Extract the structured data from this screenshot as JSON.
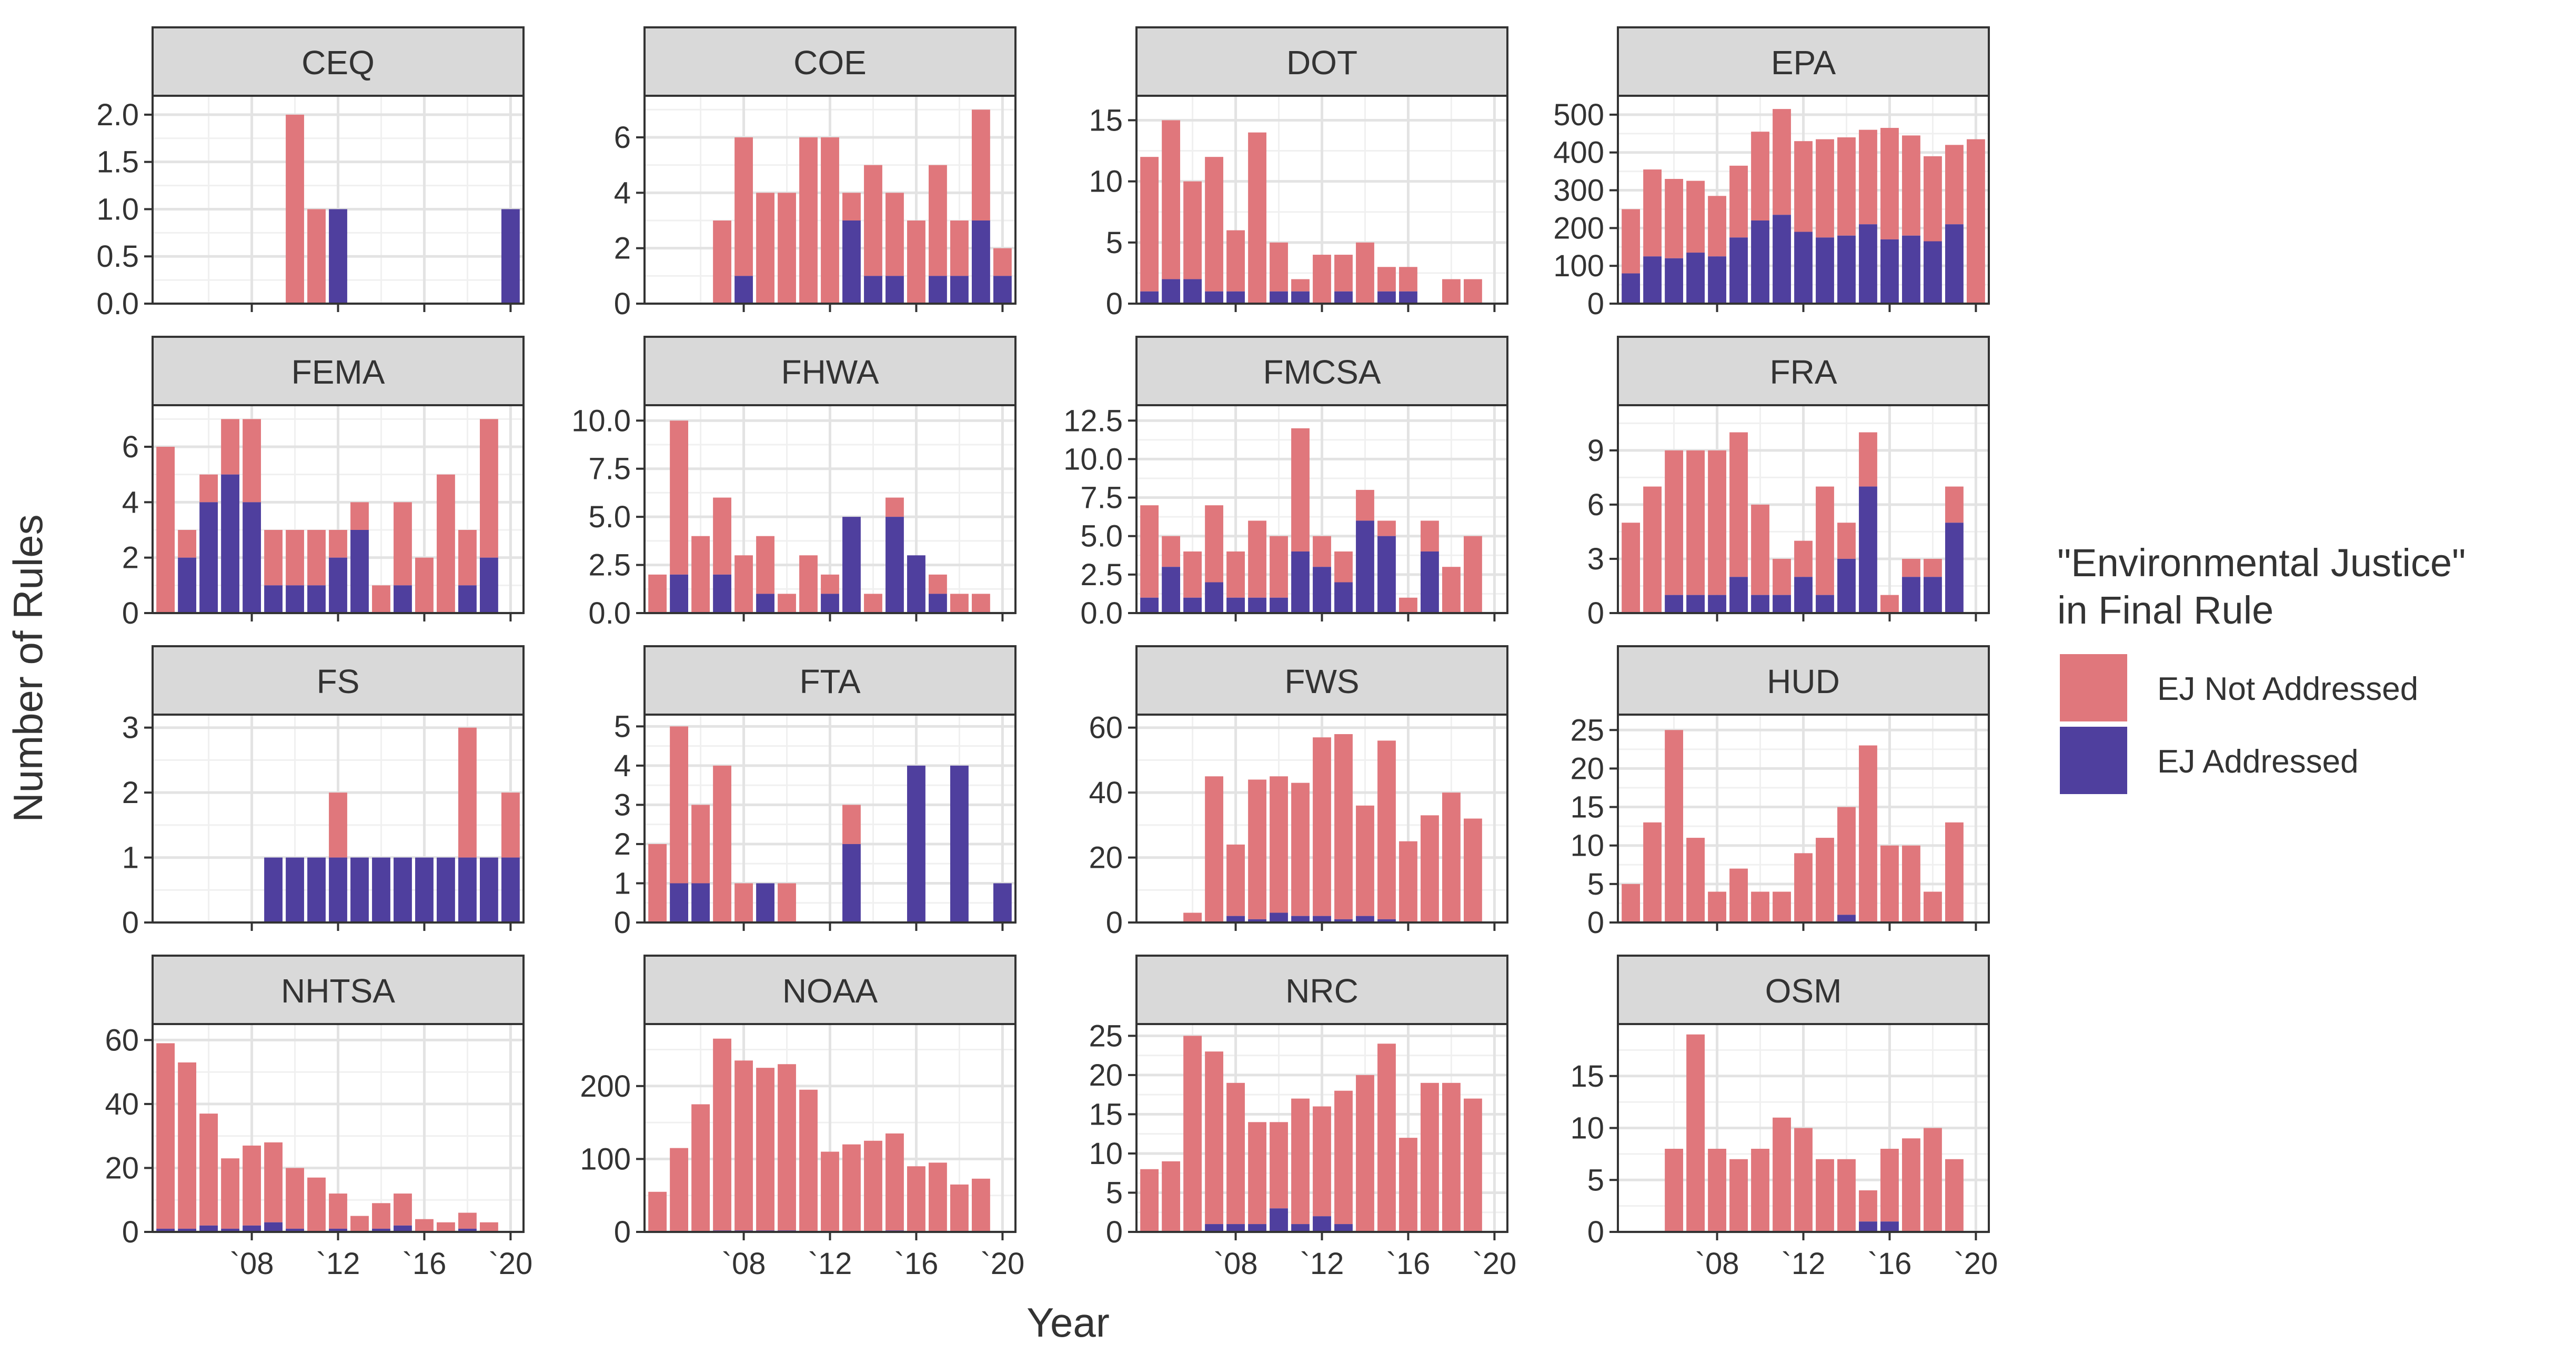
{
  "chart_data": {
    "type": "bar",
    "stacked": true,
    "facet": "panel",
    "xlabel": "Year",
    "ylabel": "Number of Rules",
    "x": [
      2004,
      2005,
      2006,
      2007,
      2008,
      2009,
      2010,
      2011,
      2012,
      2013,
      2014,
      2015,
      2016,
      2017,
      2018,
      2019,
      2020
    ],
    "x_ticks": [
      2008,
      2012,
      2016,
      2020
    ],
    "x_tick_labels": [
      "`08",
      "`12",
      "`16",
      "`20"
    ],
    "legend": {
      "title": "\"Environmental Justice\" in Final Rule",
      "title_lines": [
        "\"Environmental Justice\"",
        "in Final Rule"
      ],
      "position": "right",
      "series": [
        {
          "key": "not_addressed",
          "name": "EJ Not Addressed",
          "color": "#E0777C"
        },
        {
          "key": "addressed",
          "name": "EJ Addressed",
          "color": "#4F3F9E"
        }
      ]
    },
    "grid": true,
    "panels": [
      {
        "title": "CEQ",
        "ylim": [
          0,
          2.2
        ],
        "y_ticks": [
          0,
          0.5,
          1,
          1.5,
          2
        ],
        "y_tick_labels": [
          "0.0",
          "0.5",
          "1.0",
          "1.5",
          "2.0"
        ],
        "totals": [
          0,
          0,
          0,
          0,
          0,
          0,
          2,
          1,
          1,
          0,
          0,
          0,
          0,
          0,
          0,
          0,
          1
        ],
        "addressed": [
          0,
          0,
          0,
          0,
          0,
          0,
          0,
          0,
          1,
          0,
          0,
          0,
          0,
          0,
          0,
          0,
          1
        ]
      },
      {
        "title": "COE",
        "ylim": [
          0,
          7.5
        ],
        "y_ticks": [
          0,
          2,
          4,
          6
        ],
        "y_tick_labels": [
          "0",
          "2",
          "4",
          "6"
        ],
        "totals": [
          0,
          0,
          0,
          3,
          6,
          4,
          4,
          6,
          6,
          4,
          5,
          4,
          3,
          5,
          3,
          7,
          2
        ],
        "addressed": [
          0,
          0,
          0,
          0,
          1,
          0,
          0,
          0,
          0,
          3,
          1,
          1,
          0,
          1,
          1,
          3,
          1
        ]
      },
      {
        "title": "DOT",
        "ylim": [
          0,
          17
        ],
        "y_ticks": [
          0,
          5,
          10,
          15
        ],
        "y_tick_labels": [
          "0",
          "5",
          "10",
          "15"
        ],
        "totals": [
          12,
          15,
          10,
          12,
          6,
          14,
          5,
          2,
          4,
          4,
          5,
          3,
          3,
          0,
          2,
          2,
          0
        ],
        "addressed": [
          1,
          2,
          2,
          1,
          1,
          0,
          1,
          1,
          0,
          1,
          0,
          1,
          1,
          0,
          0,
          0,
          0
        ]
      },
      {
        "title": "EPA",
        "ylim": [
          0,
          550
        ],
        "y_ticks": [
          0,
          100,
          200,
          300,
          400,
          500
        ],
        "y_tick_labels": [
          "0",
          "100",
          "200",
          "300",
          "400",
          "500"
        ],
        "totals": [
          250,
          355,
          330,
          325,
          285,
          365,
          455,
          515,
          430,
          435,
          440,
          460,
          465,
          445,
          390,
          420,
          435
        ],
        "addressed": [
          80,
          125,
          120,
          135,
          125,
          175,
          220,
          235,
          190,
          175,
          180,
          210,
          170,
          180,
          165,
          210,
          0
        ]
      },
      {
        "title": "FEMA",
        "ylim": [
          0,
          7.5
        ],
        "y_ticks": [
          0,
          2,
          4,
          6
        ],
        "y_tick_labels": [
          "0",
          "2",
          "4",
          "6"
        ],
        "totals": [
          6,
          3,
          5,
          7,
          7,
          3,
          3,
          3,
          3,
          4,
          1,
          4,
          2,
          5,
          3,
          7,
          0
        ],
        "addressed": [
          0,
          2,
          4,
          5,
          4,
          1,
          1,
          1,
          2,
          3,
          0,
          1,
          0,
          0,
          1,
          2,
          0
        ]
      },
      {
        "title": "FHWA",
        "ylim": [
          0,
          10.8
        ],
        "y_ticks": [
          0,
          2.5,
          5,
          7.5,
          10
        ],
        "y_tick_labels": [
          "0.0",
          "2.5",
          "5.0",
          "7.5",
          "10.0"
        ],
        "totals": [
          2,
          10,
          4,
          6,
          3,
          4,
          1,
          3,
          2,
          5,
          1,
          6,
          3,
          2,
          1,
          1,
          0
        ],
        "addressed": [
          0,
          2,
          0,
          2,
          0,
          1,
          0,
          0,
          1,
          5,
          0,
          5,
          3,
          1,
          0,
          0,
          0
        ]
      },
      {
        "title": "FMCSA",
        "ylim": [
          0,
          13.5
        ],
        "y_ticks": [
          0,
          2.5,
          5,
          7.5,
          10,
          12.5
        ],
        "y_tick_labels": [
          "0.0",
          "2.5",
          "5.0",
          "7.5",
          "10.0",
          "12.5"
        ],
        "totals": [
          7,
          5,
          4,
          7,
          4,
          6,
          5,
          12,
          5,
          4,
          8,
          6,
          1,
          6,
          3,
          5,
          0
        ],
        "addressed": [
          1,
          3,
          1,
          2,
          1,
          1,
          1,
          4,
          3,
          2,
          6,
          5,
          0,
          4,
          0,
          0,
          0
        ]
      },
      {
        "title": "FRA",
        "ylim": [
          0,
          11.5
        ],
        "y_ticks": [
          0,
          3,
          6,
          9
        ],
        "y_tick_labels": [
          "0",
          "3",
          "6",
          "9"
        ],
        "totals": [
          5,
          7,
          9,
          9,
          9,
          10,
          6,
          3,
          4,
          7,
          5,
          10,
          1,
          3,
          3,
          7,
          0
        ],
        "addressed": [
          0,
          0,
          1,
          1,
          1,
          2,
          1,
          1,
          2,
          1,
          3,
          7,
          0,
          2,
          2,
          5,
          0
        ]
      },
      {
        "title": "FS",
        "ylim": [
          0,
          3.2
        ],
        "y_ticks": [
          0,
          1,
          2,
          3
        ],
        "y_tick_labels": [
          "0",
          "1",
          "2",
          "3"
        ],
        "totals": [
          0,
          0,
          0,
          0,
          0,
          1,
          1,
          1,
          2,
          1,
          1,
          1,
          1,
          1,
          3,
          1,
          2
        ],
        "addressed": [
          0,
          0,
          0,
          0,
          0,
          1,
          1,
          1,
          1,
          1,
          1,
          1,
          1,
          1,
          1,
          1,
          1
        ]
      },
      {
        "title": "FTA",
        "ylim": [
          0,
          5.3
        ],
        "y_ticks": [
          0,
          1,
          2,
          3,
          4,
          5
        ],
        "y_tick_labels": [
          "0",
          "1",
          "2",
          "3",
          "4",
          "5"
        ],
        "totals": [
          2,
          5,
          3,
          4,
          1,
          1,
          1,
          0,
          0,
          3,
          0,
          0,
          4,
          0,
          4,
          0,
          1
        ],
        "addressed": [
          0,
          1,
          1,
          0,
          0,
          1,
          0,
          0,
          0,
          2,
          0,
          0,
          4,
          0,
          4,
          0,
          1
        ]
      },
      {
        "title": "FWS",
        "ylim": [
          0,
          64
        ],
        "y_ticks": [
          0,
          20,
          40,
          60
        ],
        "y_tick_labels": [
          "0",
          "20",
          "40",
          "60"
        ],
        "totals": [
          0,
          0,
          3,
          45,
          24,
          44,
          45,
          43,
          57,
          58,
          36,
          56,
          25,
          33,
          40,
          32,
          0
        ],
        "addressed": [
          0,
          0,
          0,
          0,
          2,
          1,
          3,
          2,
          2,
          1,
          2,
          1,
          0,
          0,
          0,
          0,
          0
        ]
      },
      {
        "title": "HUD",
        "ylim": [
          0,
          27
        ],
        "y_ticks": [
          0,
          5,
          10,
          15,
          20,
          25
        ],
        "y_tick_labels": [
          "0",
          "5",
          "10",
          "15",
          "20",
          "25"
        ],
        "totals": [
          5,
          13,
          25,
          11,
          4,
          7,
          4,
          4,
          9,
          11,
          15,
          23,
          10,
          10,
          4,
          13,
          0
        ],
        "addressed": [
          0,
          0,
          0,
          0,
          0,
          0,
          0,
          0,
          0,
          0,
          1,
          0,
          0,
          0,
          0,
          0,
          0
        ]
      },
      {
        "title": "NHTSA",
        "ylim": [
          0,
          65
        ],
        "y_ticks": [
          0,
          20,
          40,
          60
        ],
        "y_tick_labels": [
          "0",
          "20",
          "40",
          "60"
        ],
        "totals": [
          59,
          53,
          37,
          23,
          27,
          28,
          20,
          17,
          12,
          5,
          9,
          12,
          4,
          3,
          6,
          3,
          0
        ],
        "addressed": [
          1,
          1,
          2,
          1,
          2,
          3,
          1,
          0,
          1,
          0,
          1,
          2,
          0,
          0,
          1,
          0,
          0
        ]
      },
      {
        "title": "NOAA",
        "ylim": [
          0,
          285
        ],
        "y_ticks": [
          0,
          100,
          200
        ],
        "y_tick_labels": [
          "0",
          "100",
          "200"
        ],
        "totals": [
          55,
          115,
          175,
          265,
          235,
          225,
          230,
          195,
          110,
          120,
          125,
          135,
          90,
          95,
          65,
          73,
          0
        ],
        "addressed": [
          0,
          0,
          0,
          2,
          2,
          2,
          2,
          0,
          0,
          0,
          0,
          2,
          0,
          0,
          0,
          0,
          0
        ]
      },
      {
        "title": "NRC",
        "ylim": [
          0,
          26.5
        ],
        "y_ticks": [
          0,
          5,
          10,
          15,
          20,
          25
        ],
        "y_tick_labels": [
          "0",
          "5",
          "10",
          "15",
          "20",
          "25"
        ],
        "totals": [
          8,
          9,
          25,
          23,
          19,
          14,
          14,
          17,
          16,
          18,
          20,
          24,
          12,
          19,
          19,
          17,
          0
        ],
        "addressed": [
          0,
          0,
          0,
          1,
          1,
          1,
          3,
          1,
          2,
          1,
          0,
          0,
          0,
          0,
          0,
          0,
          0
        ]
      },
      {
        "title": "OSM",
        "ylim": [
          0,
          20
        ],
        "y_ticks": [
          0,
          5,
          10,
          15
        ],
        "y_tick_labels": [
          "0",
          "5",
          "10",
          "15"
        ],
        "totals": [
          0,
          0,
          8,
          19,
          8,
          7,
          8,
          11,
          10,
          7,
          7,
          4,
          8,
          9,
          10,
          7,
          0
        ],
        "addressed": [
          0,
          0,
          0,
          0,
          0,
          0,
          0,
          0,
          0,
          0,
          0,
          1,
          1,
          0,
          0,
          0,
          0
        ]
      }
    ]
  }
}
